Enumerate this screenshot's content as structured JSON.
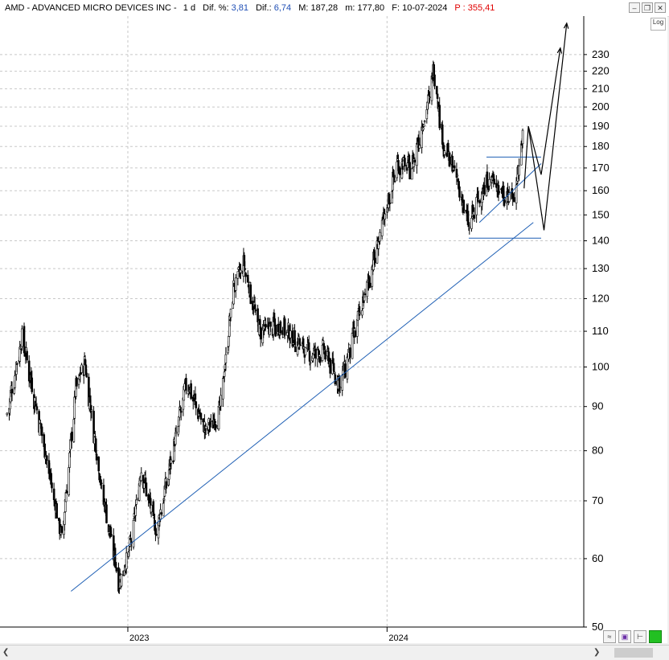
{
  "window": {
    "symbol_title": "AMD - ADVANCED MICRO DEVICES INC -",
    "timeframe": "1 d",
    "dif_pct_label": "Dif. %:",
    "dif_pct_value": "3,81",
    "dif_label": "Dif.:",
    "dif_value": "6,74",
    "max_label": "M:",
    "max_value": "187,28",
    "min_label": "m:",
    "min_value": "177,80",
    "date_label": "F:",
    "date_value": "10-07-2024",
    "price_label": "P :",
    "price_value": "355,41",
    "log_label": "Log",
    "colors": {
      "accent_blue": "#1f4fb5",
      "price_red": "#e00000",
      "trendline": "#1e5fb4"
    }
  },
  "chart_data": {
    "type": "candlestick",
    "symbol": "AMD",
    "interval": "1 d",
    "scale": "log",
    "ylim": [
      50,
      240
    ],
    "y_ticks": [
      230,
      220,
      210,
      200,
      190,
      180,
      170,
      160,
      150,
      140,
      130,
      120,
      110,
      100,
      90,
      80,
      70,
      60,
      50
    ],
    "x_ticks": [
      "2023",
      "2024"
    ],
    "grid": true,
    "price_path": [
      {
        "date": "2022-07-15",
        "close": 88
      },
      {
        "date": "2022-08-05",
        "close": 108
      },
      {
        "date": "2022-09-01",
        "close": 84
      },
      {
        "date": "2022-09-30",
        "close": 63
      },
      {
        "date": "2022-10-20",
        "close": 94
      },
      {
        "date": "2022-11-01",
        "close": 101
      },
      {
        "date": "2022-11-25",
        "close": 72
      },
      {
        "date": "2022-12-20",
        "close": 56
      },
      {
        "date": "2023-01-05",
        "close": 62
      },
      {
        "date": "2023-01-20",
        "close": 76
      },
      {
        "date": "2023-02-10",
        "close": 64
      },
      {
        "date": "2023-03-05",
        "close": 79
      },
      {
        "date": "2023-03-25",
        "close": 96
      },
      {
        "date": "2023-04-20",
        "close": 84
      },
      {
        "date": "2023-05-10",
        "close": 88
      },
      {
        "date": "2023-05-30",
        "close": 123
      },
      {
        "date": "2023-06-13",
        "close": 131
      },
      {
        "date": "2023-07-05",
        "close": 110
      },
      {
        "date": "2023-08-05",
        "close": 111
      },
      {
        "date": "2023-09-15",
        "close": 103
      },
      {
        "date": "2023-10-05",
        "close": 104
      },
      {
        "date": "2023-10-27",
        "close": 95
      },
      {
        "date": "2023-11-30",
        "close": 120
      },
      {
        "date": "2023-12-20",
        "close": 139
      },
      {
        "date": "2024-01-15",
        "close": 171
      },
      {
        "date": "2024-02-05",
        "close": 170
      },
      {
        "date": "2024-03-01",
        "close": 205
      },
      {
        "date": "2024-03-07",
        "close": 222
      },
      {
        "date": "2024-03-20",
        "close": 180
      },
      {
        "date": "2024-04-05",
        "close": 168
      },
      {
        "date": "2024-04-25",
        "close": 145
      },
      {
        "date": "2024-05-10",
        "close": 157
      },
      {
        "date": "2024-05-25",
        "close": 165
      },
      {
        "date": "2024-06-15",
        "close": 158
      },
      {
        "date": "2024-06-28",
        "close": 157
      },
      {
        "date": "2024-07-10",
        "close": 184
      }
    ],
    "annotations": [
      {
        "type": "trendline",
        "color": "#1e5fb4",
        "from": {
          "date": "2022-10-13",
          "value": 55
        },
        "to": {
          "date": "2024-07-25",
          "value": 147
        }
      },
      {
        "type": "trendline",
        "color": "#1e5fb4",
        "from": {
          "date": "2024-05-10",
          "value": 147
        },
        "to": {
          "date": "2024-08-05",
          "value": 172
        }
      },
      {
        "type": "hline",
        "color": "#1e5fb4",
        "value": 175,
        "from": "2024-05-20",
        "to": "2024-08-05"
      },
      {
        "type": "hline",
        "color": "#1e5fb4",
        "value": 141,
        "from": "2024-04-25",
        "to": "2024-08-05"
      },
      {
        "type": "projection",
        "color": "#000000",
        "points": [
          {
            "date": "2024-07-12",
            "value": 161
          },
          {
            "date": "2024-07-18",
            "value": 190
          },
          {
            "date": "2024-08-05",
            "value": 167
          },
          {
            "date": "2024-09-01",
            "value": 234
          }
        ]
      },
      {
        "type": "projection",
        "color": "#000000",
        "points": [
          {
            "date": "2024-07-18",
            "value": 190
          },
          {
            "date": "2024-08-09",
            "value": 144
          },
          {
            "date": "2024-09-10",
            "value": 250
          }
        ]
      }
    ]
  }
}
